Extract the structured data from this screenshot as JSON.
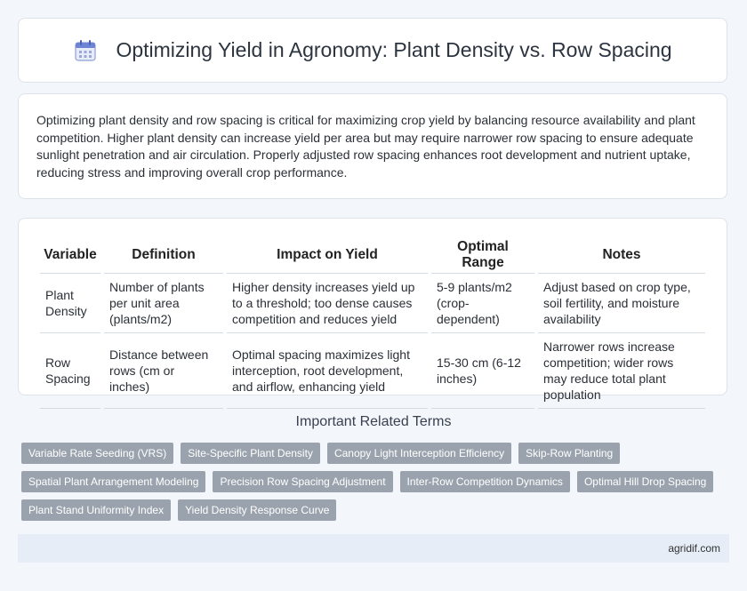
{
  "header": {
    "title": "Optimizing Yield in Agronomy: Plant Density vs. Row Spacing",
    "icon": "calendar-icon"
  },
  "intro": {
    "text": "Optimizing plant density and row spacing is critical for maximizing crop yield by balancing resource availability and plant competition. Higher plant density can increase yield per area but may require narrower row spacing to ensure adequate sunlight penetration and air circulation. Properly adjusted row spacing enhances root development and nutrient uptake, reducing stress and improving overall crop performance."
  },
  "table": {
    "headers": [
      "Variable",
      "Definition",
      "Impact on Yield",
      "Optimal Range",
      "Notes"
    ],
    "rows": [
      [
        "Plant Density",
        "Number of plants per unit area (plants/m2)",
        "Higher density increases yield up to a threshold; too dense causes competition and reduces yield",
        "5-9 plants/m2 (crop-dependent)",
        "Adjust based on crop type, soil fertility, and moisture availability"
      ],
      [
        "Row Spacing",
        "Distance between rows (cm or inches)",
        "Optimal spacing maximizes light interception, root development, and airflow, enhancing yield",
        "15-30 cm (6-12 inches)",
        "Narrower rows increase competition; wider rows may reduce total plant population"
      ]
    ]
  },
  "related": {
    "title": "Important Related Terms",
    "terms": [
      "Variable Rate Seeding (VRS)",
      "Site-Specific Plant Density",
      "Canopy Light Interception Efficiency",
      "Skip-Row Planting",
      "Spatial Plant Arrangement Modeling",
      "Precision Row Spacing Adjustment",
      "Inter-Row Competition Dynamics",
      "Optimal Hill Drop Spacing",
      "Plant Stand Uniformity Index",
      "Yield Density Response Curve"
    ]
  },
  "footer": {
    "site": "agridif.com"
  },
  "colors": {
    "tag_bg": "#9aa3ad",
    "footer_bg": "#e6edf7",
    "page_bg": "#f3f6fa"
  }
}
